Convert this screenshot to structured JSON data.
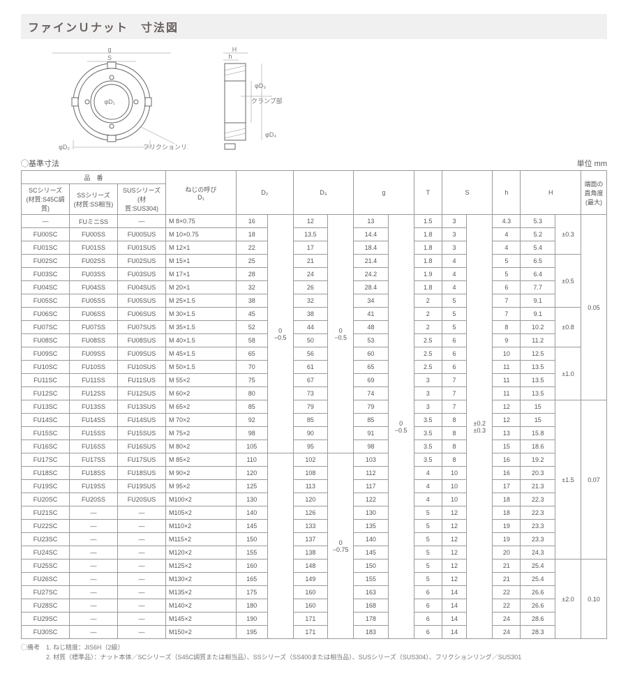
{
  "title": "ファインＵナット　寸法図",
  "subheading": "◯基準寸法",
  "unit": "単位 mm",
  "diagram_labels": {
    "g": "g",
    "S": "S",
    "d1": "φD₁",
    "d2": "φD₂",
    "friction": "フリクションリング",
    "clamp": "クランプ部",
    "H": "H",
    "h": "h",
    "d3": "φD₃",
    "d4": "φD₄"
  },
  "headers": {
    "product_group": "品　番",
    "sc": "SCシリーズ\n(材質:S45C調質)",
    "ss": "SSシリーズ\n(材質:SS相当)",
    "sus": "SUSシリーズ\n(材質:SUS304)",
    "thread": "ねじの呼び\nD₁",
    "d2": "D₂",
    "d3": "D₃",
    "g": "g",
    "T": "T",
    "S": "S",
    "h": "h",
    "H": "H",
    "perp": "端面の\n直角度\n(最大)"
  },
  "rows": [
    [
      "―",
      "FUミニSS",
      "―",
      "M  8×0.75",
      "16",
      "",
      "12",
      "",
      "13",
      "",
      "1.5",
      "3",
      "",
      "4.3",
      "5.3",
      "",
      ""
    ],
    [
      "FU00SC",
      "FU00SS",
      "FU00SUS",
      "M 10×0.75",
      "18",
      "",
      "13.5",
      "",
      "14.4",
      "",
      "1.8",
      "3",
      "",
      "4",
      "5.2",
      "±0.3",
      ""
    ],
    [
      "FU01SC",
      "FU01SS",
      "FU01SUS",
      "M 12×1",
      "22",
      "",
      "17",
      "",
      "18.4",
      "",
      "1.8",
      "3",
      "",
      "4",
      "5.4",
      "",
      ""
    ],
    [
      "FU02SC",
      "FU02SS",
      "FU02SUS",
      "M 15×1",
      "25",
      "",
      "21",
      "",
      "21.4",
      "",
      "1.8",
      "4",
      "",
      "5",
      "6.5",
      "",
      ""
    ],
    [
      "FU03SC",
      "FU03SS",
      "FU03SUS",
      "M 17×1",
      "28",
      "",
      "24",
      "",
      "24.2",
      "",
      "1.9",
      "4",
      "",
      "5",
      "6.4",
      "±0.5",
      ""
    ],
    [
      "FU04SC",
      "FU04SS",
      "FU04SUS",
      "M 20×1",
      "32",
      "",
      "26",
      "",
      "28.4",
      "",
      "1.8",
      "4",
      "",
      "6",
      "7.7",
      "",
      "0.05"
    ],
    [
      "FU05SC",
      "FU05SS",
      "FU05SUS",
      "M 25×1.5",
      "38",
      "",
      "32",
      "",
      "34",
      "",
      "2",
      "5",
      "",
      "7",
      "9.1",
      "",
      ""
    ],
    [
      "FU06SC",
      "FU06SS",
      "FU06SUS",
      "M 30×1.5",
      "45",
      "",
      "38",
      "",
      "41",
      "",
      "2",
      "5",
      "",
      "7",
      "9.1",
      "",
      ""
    ],
    [
      "FU07SC",
      "FU07SS",
      "FU07SUS",
      "M 35×1.5",
      "52",
      "",
      "44",
      "0",
      "48",
      "",
      "2",
      "5",
      "",
      "8",
      "10.2",
      "±0.8",
      ""
    ],
    [
      "FU08SC",
      "FU08SS",
      "FU08SUS",
      "M 40×1.5",
      "58",
      "",
      "50",
      "−0.5",
      "53",
      "",
      "2.5",
      "6",
      "±0.2",
      "9",
      "11.2",
      "",
      ""
    ],
    [
      "FU09SC",
      "FU09SS",
      "FU09SUS",
      "M 45×1.5",
      "65",
      "",
      "56",
      "",
      "60",
      "",
      "2.5",
      "6",
      "",
      "10",
      "12.5",
      "",
      ""
    ],
    [
      "FU10SC",
      "FU10SS",
      "FU10SUS",
      "M 50×1.5",
      "70",
      "",
      "61",
      "",
      "65",
      "",
      "2.5",
      "6",
      "",
      "11",
      "13.5",
      "±1.0",
      ""
    ],
    [
      "FU11SC",
      "FU11SS",
      "FU11SUS",
      "M 55×2",
      "75",
      "",
      "67",
      "",
      "69",
      "",
      "3",
      "7",
      "",
      "11",
      "13.5",
      "",
      ""
    ],
    [
      "FU12SC",
      "FU12SS",
      "FU12SUS",
      "M 60×2",
      "80",
      "",
      "73",
      "",
      "74",
      "",
      "3",
      "7",
      "",
      "11",
      "13.5",
      "",
      ""
    ],
    [
      "FU13SC",
      "FU13SS",
      "FU13SUS",
      "M 65×2",
      "85",
      "",
      "79",
      "",
      "79",
      "",
      "3",
      "7",
      "",
      "12",
      "15",
      "",
      ""
    ],
    [
      "FU14SC",
      "FU14SS",
      "FU14SUS",
      "M 70×2",
      "92",
      "0",
      "85",
      "",
      "85",
      "0",
      "3.5",
      "8",
      "",
      "12",
      "15",
      "",
      ""
    ],
    [
      "FU15SC",
      "FU15SS",
      "FU15SUS",
      "M 75×2",
      "98",
      "−0.5",
      "90",
      "",
      "91",
      "−0.5",
      "3.5",
      "8",
      "",
      "13",
      "15.8",
      "",
      ""
    ],
    [
      "FU16SC",
      "FU16SS",
      "FU16SUS",
      "M 80×2",
      "105",
      "",
      "95",
      "",
      "98",
      "",
      "3.5",
      "8",
      "",
      "15",
      "18.6",
      "",
      ""
    ],
    [
      "FU17SC",
      "FU17SS",
      "FU17SUS",
      "M 85×2",
      "110",
      "",
      "102",
      "",
      "103",
      "",
      "3.5",
      "8",
      "",
      "16",
      "19.2",
      "",
      "0.07"
    ],
    [
      "FU18SC",
      "FU18SS",
      "FU18SUS",
      "M 90×2",
      "120",
      "",
      "108",
      "",
      "112",
      "",
      "4",
      "10",
      "",
      "16",
      "20.3",
      "",
      ""
    ],
    [
      "FU19SC",
      "FU19SS",
      "FU19SUS",
      "M 95×2",
      "125",
      "",
      "113",
      "",
      "117",
      "",
      "4",
      "10",
      "",
      "17",
      "21.3",
      "±1.5",
      ""
    ],
    [
      "FU20SC",
      "FU20SS",
      "FU20SUS",
      "M100×2",
      "130",
      "",
      "120",
      "",
      "122",
      "",
      "4",
      "10",
      "",
      "18",
      "22.3",
      "",
      ""
    ],
    [
      "FU21SC",
      "―",
      "―",
      "M105×2",
      "140",
      "",
      "126",
      "",
      "130",
      "",
      "5",
      "12",
      "",
      "18",
      "22.3",
      "",
      ""
    ],
    [
      "FU22SC",
      "―",
      "―",
      "M110×2",
      "145",
      "",
      "133",
      "",
      "135",
      "",
      "5",
      "12",
      "",
      "19",
      "23.3",
      "",
      ""
    ],
    [
      "FU23SC",
      "―",
      "―",
      "M115×2",
      "150",
      "",
      "137",
      "0",
      "140",
      "",
      "5",
      "12",
      "",
      "19",
      "23.3",
      "",
      ""
    ],
    [
      "FU24SC",
      "―",
      "―",
      "M120×2",
      "155",
      "",
      "138",
      "−0.75",
      "145",
      "",
      "5",
      "12",
      "±0.3",
      "20",
      "24.3",
      "",
      ""
    ],
    [
      "FU25SC",
      "―",
      "―",
      "M125×2",
      "160",
      "",
      "148",
      "",
      "150",
      "",
      "5",
      "12",
      "",
      "21",
      "25.4",
      "",
      ""
    ],
    [
      "FU26SC",
      "―",
      "―",
      "M130×2",
      "165",
      "",
      "149",
      "",
      "155",
      "",
      "5",
      "12",
      "",
      "21",
      "25.4",
      "",
      ""
    ],
    [
      "FU27SC",
      "―",
      "―",
      "M135×2",
      "175",
      "",
      "160",
      "",
      "163",
      "",
      "6",
      "14",
      "",
      "22",
      "26.6",
      "±2.0",
      "0.10"
    ],
    [
      "FU28SC",
      "―",
      "―",
      "M140×2",
      "180",
      "",
      "160",
      "",
      "168",
      "",
      "6",
      "14",
      "",
      "22",
      "26.6",
      "",
      ""
    ],
    [
      "FU29SC",
      "―",
      "―",
      "M145×2",
      "190",
      "",
      "171",
      "",
      "178",
      "",
      "6",
      "14",
      "",
      "24",
      "28.6",
      "",
      ""
    ],
    [
      "FU30SC",
      "―",
      "―",
      "M150×2",
      "195",
      "",
      "171",
      "",
      "183",
      "",
      "6",
      "14",
      "",
      "24",
      "28.3",
      "",
      ""
    ]
  ],
  "d2_tol_spans": [
    [
      0,
      18
    ],
    [
      18,
      32
    ]
  ],
  "d3_tol_spans": [
    [
      0,
      18
    ],
    [
      18,
      32
    ]
  ],
  "g_tol_spans": [
    [
      0,
      32
    ]
  ],
  "S_tol_spans": [
    [
      0,
      32
    ]
  ],
  "H_tol_spans": [
    [
      0,
      3
    ],
    [
      3,
      7
    ],
    [
      7,
      10
    ],
    [
      10,
      14
    ],
    [
      14,
      26
    ],
    [
      26,
      32
    ]
  ],
  "perp_spans": [
    [
      0,
      14
    ],
    [
      14,
      26
    ],
    [
      26,
      32
    ]
  ],
  "notes": [
    "◯備考　1. ねじ精度：JIS6H（2級）",
    "　　　　2. 材質（標準品）：ナット本体／SCシリーズ（S45C調質または相当品）、SSシリーズ（SS400または相当品）、SUSシリーズ（SUS304）、フリクションリング／SUS301"
  ]
}
